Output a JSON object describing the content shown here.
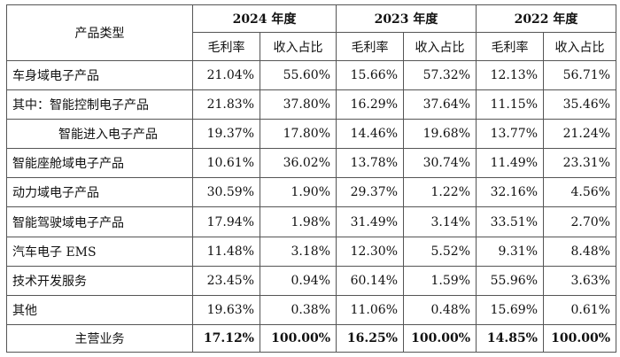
{
  "table": {
    "corner_header": "产品类型",
    "years": [
      "2024 年度",
      "2023 年度",
      "2022 年度"
    ],
    "sub_headers": [
      "毛利率",
      "收入占比"
    ],
    "rows": [
      {
        "label": "车身域电子产品",
        "style": "plain",
        "values": [
          "21.04%",
          "55.60%",
          "15.66%",
          "57.32%",
          "12.13%",
          "56.71%"
        ]
      },
      {
        "label": "其中：智能控制电子产品",
        "style": "plain",
        "values": [
          "21.83%",
          "37.80%",
          "16.29%",
          "37.64%",
          "11.15%",
          "35.46%"
        ]
      },
      {
        "label": "智能进入电子产品",
        "style": "indent2",
        "values": [
          "19.37%",
          "17.80%",
          "14.46%",
          "19.68%",
          "13.77%",
          "21.24%"
        ]
      },
      {
        "label": "智能座舱域电子产品",
        "style": "plain",
        "values": [
          "10.61%",
          "36.02%",
          "13.78%",
          "30.74%",
          "11.49%",
          "23.31%"
        ]
      },
      {
        "label": "动力域电子产品",
        "style": "plain",
        "values": [
          "30.59%",
          "1.90%",
          "29.37%",
          "1.22%",
          "32.16%",
          "4.56%"
        ]
      },
      {
        "label": "智能驾驶域电子产品",
        "style": "plain",
        "values": [
          "17.94%",
          "1.98%",
          "31.49%",
          "3.14%",
          "33.51%",
          "2.70%"
        ]
      },
      {
        "label": "汽车电子 EMS",
        "style": "plain",
        "values": [
          "11.48%",
          "3.18%",
          "12.30%",
          "5.52%",
          "9.31%",
          "8.48%"
        ]
      },
      {
        "label": "技术开发服务",
        "style": "plain",
        "values": [
          "23.45%",
          "0.94%",
          "60.14%",
          "1.59%",
          "55.96%",
          "3.63%"
        ]
      },
      {
        "label": "其他",
        "style": "plain",
        "values": [
          "19.63%",
          "0.38%",
          "11.06%",
          "0.48%",
          "15.69%",
          "0.61%"
        ]
      }
    ],
    "total": {
      "label": "主营业务",
      "values": [
        "17.12%",
        "100.00%",
        "16.25%",
        "100.00%",
        "14.85%",
        "100.00%"
      ]
    }
  }
}
